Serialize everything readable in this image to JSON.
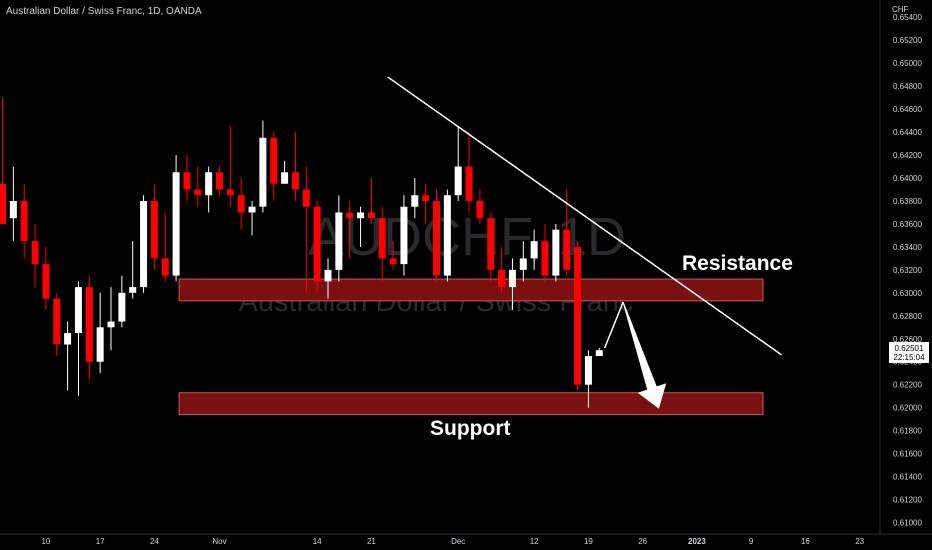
{
  "header": {
    "title": "Australian Dollar / Swiss Franc, 1D, OANDA"
  },
  "watermark": {
    "symbol": "AUDCHF, 1D",
    "name": "Australian Dollar / Swiss Franc"
  },
  "price_axis": {
    "unit": "CHF",
    "last_price": "0.62501",
    "countdown": "22:15:04"
  },
  "annotations": {
    "resistance": "Resistance",
    "support": "Support"
  },
  "colors": {
    "background": "#000000",
    "up": "#ffffff",
    "down": "#ff0000",
    "zone": "#7a1010",
    "axis_text": "#d1d4dc"
  },
  "chart_data": {
    "type": "candlestick",
    "title": "Australian Dollar / Swiss Franc, 1D, OANDA",
    "ylim": [
      0.609,
      0.6555
    ],
    "y_ticks": [
      "0.65400",
      "0.65200",
      "0.65000",
      "0.64800",
      "0.64600",
      "0.64400",
      "0.64200",
      "0.64000",
      "0.63800",
      "0.63600",
      "0.63400",
      "0.63200",
      "0.63000",
      "0.62800",
      "0.62600",
      "0.62400",
      "0.62200",
      "0.62000",
      "0.61800",
      "0.61600",
      "0.61400",
      "0.61200",
      "0.61000"
    ],
    "x_ticks": [
      {
        "label": "10",
        "index": 4
      },
      {
        "label": "17",
        "index": 9
      },
      {
        "label": "24",
        "index": 14
      },
      {
        "label": "Nov",
        "index": 20
      },
      {
        "label": "14",
        "index": 29
      },
      {
        "label": "21",
        "index": 34
      },
      {
        "label": "Dec",
        "index": 42
      },
      {
        "label": "12",
        "index": 49
      },
      {
        "label": "19",
        "index": 54
      },
      {
        "label": "26",
        "index": 59
      },
      {
        "label": "2023",
        "index": 64
      },
      {
        "label": "9",
        "index": 69
      },
      {
        "label": "16",
        "index": 74
      },
      {
        "label": "23",
        "index": 79
      }
    ],
    "candles": [
      {
        "o": 0.6395,
        "h": 0.647,
        "l": 0.636,
        "c": 0.636
      },
      {
        "o": 0.6365,
        "h": 0.641,
        "l": 0.6345,
        "c": 0.638
      },
      {
        "o": 0.638,
        "h": 0.6395,
        "l": 0.633,
        "c": 0.6345
      },
      {
        "o": 0.6345,
        "h": 0.636,
        "l": 0.6305,
        "c": 0.6325
      },
      {
        "o": 0.6325,
        "h": 0.634,
        "l": 0.6285,
        "c": 0.6295
      },
      {
        "o": 0.6295,
        "h": 0.63,
        "l": 0.6245,
        "c": 0.6255
      },
      {
        "o": 0.6255,
        "h": 0.6275,
        "l": 0.6215,
        "c": 0.6265
      },
      {
        "o": 0.6265,
        "h": 0.631,
        "l": 0.621,
        "c": 0.6305
      },
      {
        "o": 0.6305,
        "h": 0.6315,
        "l": 0.6225,
        "c": 0.624
      },
      {
        "o": 0.624,
        "h": 0.63,
        "l": 0.623,
        "c": 0.627
      },
      {
        "o": 0.627,
        "h": 0.6305,
        "l": 0.625,
        "c": 0.6275
      },
      {
        "o": 0.6275,
        "h": 0.6315,
        "l": 0.627,
        "c": 0.63
      },
      {
        "o": 0.63,
        "h": 0.6345,
        "l": 0.6295,
        "c": 0.6305
      },
      {
        "o": 0.6305,
        "h": 0.6385,
        "l": 0.63,
        "c": 0.638
      },
      {
        "o": 0.638,
        "h": 0.6395,
        "l": 0.632,
        "c": 0.633
      },
      {
        "o": 0.633,
        "h": 0.637,
        "l": 0.631,
        "c": 0.6315
      },
      {
        "o": 0.6315,
        "h": 0.642,
        "l": 0.631,
        "c": 0.6405
      },
      {
        "o": 0.6405,
        "h": 0.642,
        "l": 0.638,
        "c": 0.639
      },
      {
        "o": 0.639,
        "h": 0.641,
        "l": 0.6375,
        "c": 0.6385
      },
      {
        "o": 0.6385,
        "h": 0.641,
        "l": 0.637,
        "c": 0.6405
      },
      {
        "o": 0.6405,
        "h": 0.641,
        "l": 0.6385,
        "c": 0.639
      },
      {
        "o": 0.639,
        "h": 0.6445,
        "l": 0.6375,
        "c": 0.6385
      },
      {
        "o": 0.6385,
        "h": 0.64,
        "l": 0.6355,
        "c": 0.637
      },
      {
        "o": 0.637,
        "h": 0.638,
        "l": 0.635,
        "c": 0.6375
      },
      {
        "o": 0.6375,
        "h": 0.645,
        "l": 0.637,
        "c": 0.6435
      },
      {
        "o": 0.6435,
        "h": 0.644,
        "l": 0.638,
        "c": 0.6395
      },
      {
        "o": 0.6395,
        "h": 0.6415,
        "l": 0.6395,
        "c": 0.6405
      },
      {
        "o": 0.6405,
        "h": 0.644,
        "l": 0.638,
        "c": 0.639
      },
      {
        "o": 0.639,
        "h": 0.641,
        "l": 0.63,
        "c": 0.6375
      },
      {
        "o": 0.6375,
        "h": 0.638,
        "l": 0.63,
        "c": 0.631
      },
      {
        "o": 0.631,
        "h": 0.633,
        "l": 0.6295,
        "c": 0.632
      },
      {
        "o": 0.632,
        "h": 0.6385,
        "l": 0.631,
        "c": 0.637
      },
      {
        "o": 0.637,
        "h": 0.638,
        "l": 0.633,
        "c": 0.6365
      },
      {
        "o": 0.6365,
        "h": 0.6375,
        "l": 0.634,
        "c": 0.637
      },
      {
        "o": 0.637,
        "h": 0.64,
        "l": 0.636,
        "c": 0.6365
      },
      {
        "o": 0.6365,
        "h": 0.6375,
        "l": 0.631,
        "c": 0.633
      },
      {
        "o": 0.633,
        "h": 0.6345,
        "l": 0.632,
        "c": 0.6325
      },
      {
        "o": 0.6325,
        "h": 0.6385,
        "l": 0.6315,
        "c": 0.6375
      },
      {
        "o": 0.6375,
        "h": 0.64,
        "l": 0.6365,
        "c": 0.6385
      },
      {
        "o": 0.6385,
        "h": 0.6395,
        "l": 0.636,
        "c": 0.638
      },
      {
        "o": 0.638,
        "h": 0.639,
        "l": 0.631,
        "c": 0.6315
      },
      {
        "o": 0.6315,
        "h": 0.639,
        "l": 0.631,
        "c": 0.6385
      },
      {
        "o": 0.6385,
        "h": 0.6445,
        "l": 0.638,
        "c": 0.641
      },
      {
        "o": 0.641,
        "h": 0.644,
        "l": 0.637,
        "c": 0.638
      },
      {
        "o": 0.638,
        "h": 0.639,
        "l": 0.636,
        "c": 0.6365
      },
      {
        "o": 0.6365,
        "h": 0.637,
        "l": 0.631,
        "c": 0.632
      },
      {
        "o": 0.632,
        "h": 0.634,
        "l": 0.63,
        "c": 0.6305
      },
      {
        "o": 0.6305,
        "h": 0.633,
        "l": 0.6285,
        "c": 0.632
      },
      {
        "o": 0.632,
        "h": 0.6345,
        "l": 0.631,
        "c": 0.633
      },
      {
        "o": 0.633,
        "h": 0.6355,
        "l": 0.632,
        "c": 0.6345
      },
      {
        "o": 0.6345,
        "h": 0.636,
        "l": 0.631,
        "c": 0.6315
      },
      {
        "o": 0.6315,
        "h": 0.636,
        "l": 0.631,
        "c": 0.6355
      },
      {
        "o": 0.6355,
        "h": 0.639,
        "l": 0.6315,
        "c": 0.632
      },
      {
        "o": 0.634,
        "h": 0.6345,
        "l": 0.6215,
        "c": 0.622
      },
      {
        "o": 0.622,
        "h": 0.625,
        "l": 0.62,
        "c": 0.6245
      },
      {
        "o": 0.6245,
        "h": 0.6252,
        "l": 0.6245,
        "c": 0.625
      }
    ],
    "zones": [
      {
        "label": "Resistance",
        "y_top": 0.6312,
        "y_bottom": 0.6293,
        "start_index": 16,
        "end_index": 70
      },
      {
        "label": "Support",
        "y_top": 0.6213,
        "y_bottom": 0.6194,
        "start_index": 16,
        "end_index": 70
      }
    ],
    "trendline": {
      "start": {
        "index": 35.5,
        "y": 0.6488
      },
      "end": {
        "index": 71.8,
        "y": 0.6246
      }
    },
    "projection": [
      {
        "index": 55.5,
        "y": 0.6252
      },
      {
        "index": 57.2,
        "y": 0.6292
      },
      {
        "index": 60.5,
        "y": 0.6199
      }
    ]
  }
}
